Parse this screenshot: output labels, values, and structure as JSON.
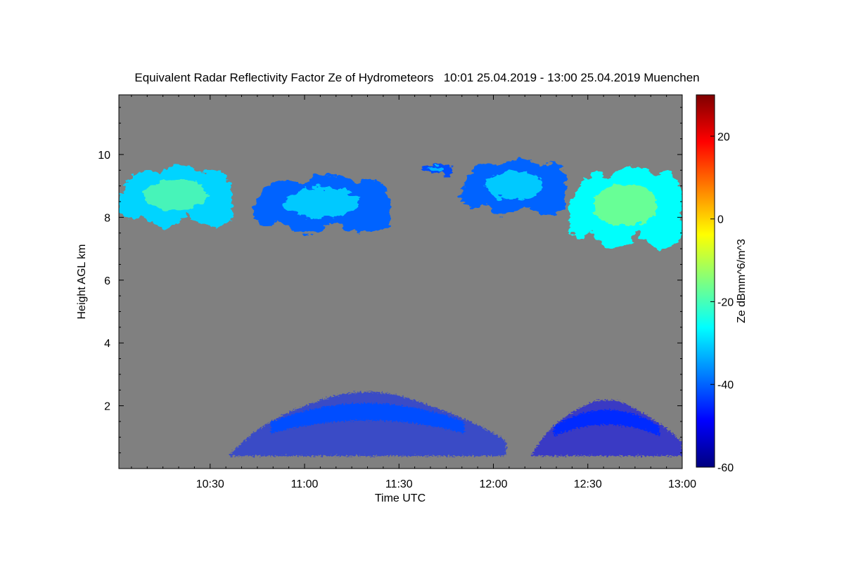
{
  "chart_data": {
    "type": "heatmap",
    "title": "Equivalent Radar Reflectivity Factor Ze of Hydrometeors   10:01 25.04.2019 - 13:00 25.04.2019 Muenchen",
    "xlabel": "Time UTC",
    "ylabel": "Height AGL km",
    "colorbar_label": "Ze dBmm^6/m^3",
    "x_range": [
      "10:01",
      "13:00"
    ],
    "x_ticks": [
      "10:30",
      "11:00",
      "11:30",
      "12:00",
      "12:30",
      "13:00"
    ],
    "y_range": [
      0,
      11.9
    ],
    "y_ticks": [
      "2",
      "4",
      "6",
      "8",
      "10"
    ],
    "colorbar_range": [
      -60,
      30
    ],
    "colorbar_ticks": [
      "20",
      "0",
      "-20",
      "-40",
      "-60"
    ],
    "colormap": "jet",
    "background_color": "#808080",
    "regions": [
      {
        "layer": "upper cloud",
        "t_start": "10:01",
        "t_end": "10:37",
        "z_bottom": 7.4,
        "z_top": 9.7,
        "peak_dbz": -18
      },
      {
        "layer": "upper cloud",
        "t_start": "10:44",
        "t_end": "11:27",
        "z_bottom": 7.2,
        "z_top": 9.4,
        "peak_dbz": -28
      },
      {
        "layer": "upper cloud",
        "t_start": "11:37",
        "t_end": "11:47",
        "z_bottom": 9.3,
        "z_top": 9.7,
        "peak_dbz": -30
      },
      {
        "layer": "upper cloud",
        "t_start": "11:50",
        "t_end": "12:23",
        "z_bottom": 7.8,
        "z_top": 9.9,
        "peak_dbz": -28
      },
      {
        "layer": "upper cloud",
        "t_start": "12:24",
        "t_end": "13:00",
        "z_bottom": 6.6,
        "z_top": 9.7,
        "peak_dbz": -14
      },
      {
        "layer": "lower echoes",
        "t_start": "10:36",
        "t_end": "12:04",
        "z_bottom": 0.4,
        "z_top": 2.8,
        "peak_dbz": -42
      },
      {
        "layer": "lower echoes",
        "t_start": "12:12",
        "t_end": "13:00",
        "z_bottom": 0.4,
        "z_top": 2.5,
        "peak_dbz": -45
      }
    ]
  }
}
